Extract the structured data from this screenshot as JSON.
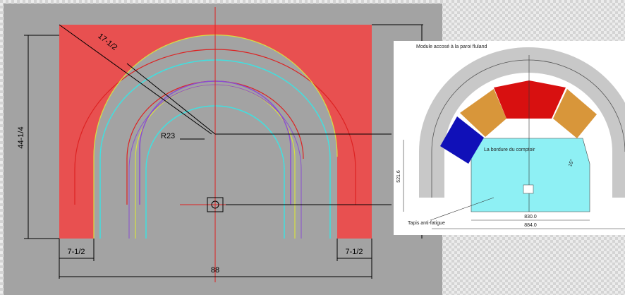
{
  "left_drawing": {
    "labels": {
      "diagonal": "17-1/2",
      "radius": "R23",
      "height": "44-1/4",
      "left_leg": "7-1/2",
      "right_leg": "7-1/2",
      "width": "88"
    }
  },
  "right_drawing": {
    "labels": {
      "top_note": "Module accosé à la paroi fluland",
      "counter_edge": "La bordure du comptoir",
      "height": "521.6",
      "angle": "15°",
      "mat": "Tapis anti-fatigue",
      "inner_width": "830.0",
      "outer_width": "884.0"
    }
  }
}
